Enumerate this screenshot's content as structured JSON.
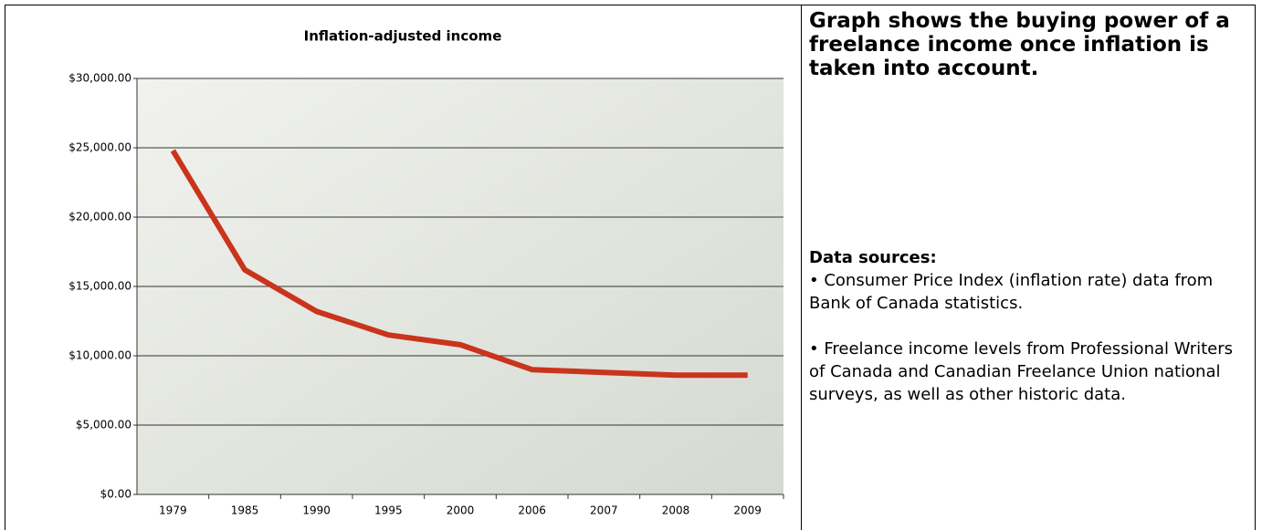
{
  "chart_data": {
    "type": "line",
    "title": "Inflation-adjusted income",
    "categories": [
      "1979",
      "1985",
      "1990",
      "1995",
      "2000",
      "2006",
      "2007",
      "2008",
      "2009"
    ],
    "series": [
      {
        "color": "#c9341d",
        "values": [
          24800,
          16200,
          13200,
          11500,
          10800,
          9000,
          8800,
          8600,
          8600
        ]
      }
    ],
    "ylim": [
      0,
      30000
    ],
    "yticks": [
      {
        "value": 0,
        "label": "$0.00"
      },
      {
        "value": 5000,
        "label": "$5,000.00"
      },
      {
        "value": 10000,
        "label": "$10,000.00"
      },
      {
        "value": 15000,
        "label": "$15,000.00"
      },
      {
        "value": 20000,
        "label": "$20,000.00"
      },
      {
        "value": 25000,
        "label": "$25,000.00"
      },
      {
        "value": 30000,
        "label": "$30,000.00"
      }
    ],
    "grid": true
  },
  "sidebar": {
    "heading": "Graph shows the buying power of a freelance income once inflation is taken into account.",
    "sources_title": "Data sources:",
    "sources": [
      "• Consumer Price Index (inflation rate) data from Bank of Canada statistics.",
      "• Freelance income levels from Professional Writers of Canada and Canadian Freelance Union national surveys, as well as other historic data."
    ]
  }
}
